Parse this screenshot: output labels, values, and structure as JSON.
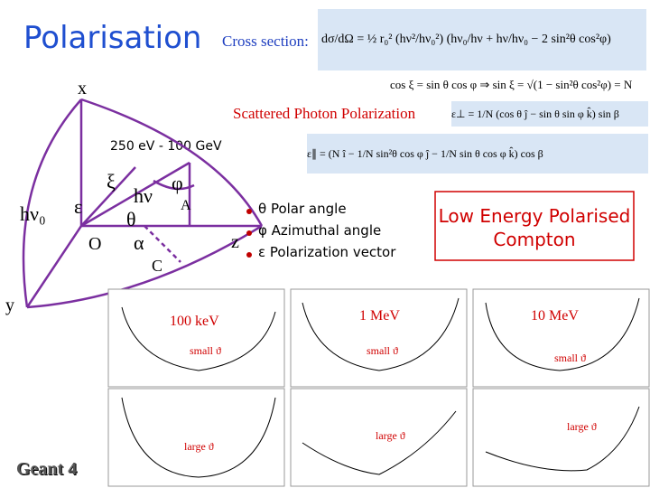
{
  "header": {
    "title": "Polarisation",
    "cross_section_label": "Cross section:",
    "cross_section_formula": "dσ/dΩ = ½ r₀² (hν²/hν₀²) (hν₀/hν + hν/hν₀ − 2 sin²θ cos²φ)"
  },
  "formulas": {
    "cos_xi": "cos ξ = sin θ cos φ  ⇒  sin ξ = √(1 − sin²θ cos²φ) = N",
    "heading": "Scattered Photon Polarization",
    "eps_perp": "ε⊥ = 1/N (cos θ ĵ − sin θ sin φ k̂) sin β",
    "eps_par": "ε∥ = (N î − 1/N sin²θ cos φ ĵ − 1/N sin θ cos φ k̂) cos β"
  },
  "energy_range": "250 eV - 100 GeV",
  "diagram": {
    "x": "x",
    "y": "y",
    "z": "z",
    "hv0": "hν₀",
    "eps": "ε",
    "xi": "ξ",
    "hv": "hν",
    "phi": "φ",
    "A": "A",
    "theta": "θ",
    "O": "O",
    "alpha": "α",
    "C": "C"
  },
  "legend": [
    "θ Polar angle",
    "φ Azimuthal angle",
    "ε Polarization vector"
  ],
  "box": "Low Energy Polarised Compton",
  "plots": {
    "energies": [
      "100 keV",
      "1 MeV",
      "10 MeV"
    ],
    "small": "small ϑ",
    "large": "large ϑ"
  },
  "footer": "Geant 4"
}
